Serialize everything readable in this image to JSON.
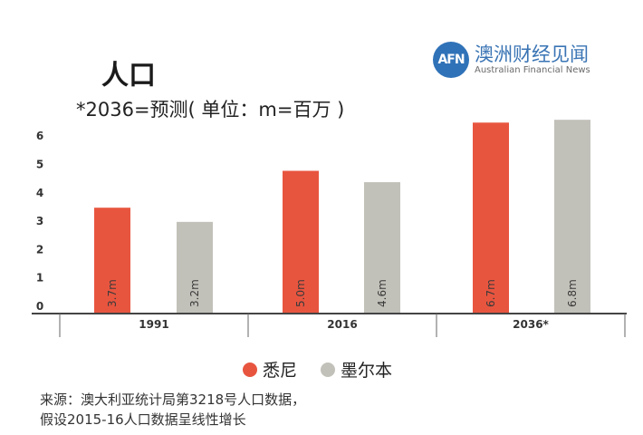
{
  "logo": {
    "mark": "AFN",
    "name_cn": "澳洲财经见闻",
    "name_en": "Australian Financial News"
  },
  "chart_data": {
    "type": "bar",
    "title": "人口",
    "subtitle": "*2036=预测( 单位：m=百万 )",
    "categories": [
      "1991",
      "2016",
      "2036*"
    ],
    "series": [
      {
        "name": "悉尼",
        "color": "#e8553f",
        "values": [
          3.7,
          5.0,
          6.7
        ],
        "labels": [
          "3.7m",
          "5.0m",
          "6.7m"
        ]
      },
      {
        "name": "墨尔本",
        "color": "#c2c1b9",
        "values": [
          3.2,
          4.6,
          6.8
        ],
        "labels": [
          "3.2m",
          "4.6m",
          "6.8m"
        ]
      }
    ],
    "yticks": [
      "0",
      "1",
      "2",
      "3",
      "4",
      "5",
      "6"
    ],
    "ylim": [
      0,
      7
    ],
    "grid": false,
    "legend": "bottom-center"
  },
  "source": {
    "line1": "来源：澳大利亚统计局第3218号人口数据，",
    "line2": "假设2015-16人口数据呈线性增长"
  }
}
